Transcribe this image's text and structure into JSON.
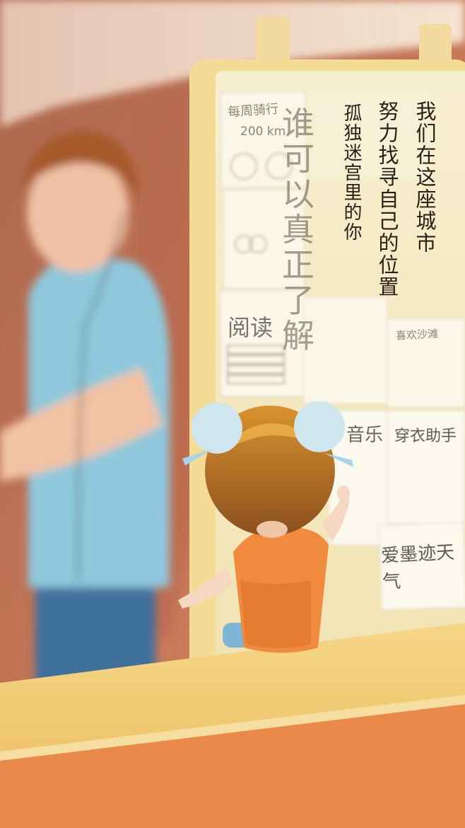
{
  "poem": {
    "line1": "我们在这座城市",
    "line2": "努力找寻自己的位置",
    "line3": "孤独迷宫里的你",
    "line4": "谁可以真正了解"
  },
  "notes": {
    "cycling": "每周骑行",
    "distance": "200 km",
    "reading": "阅读",
    "music": "音乐",
    "dress": "穿衣助手",
    "weather": "爱墨迹天气",
    "sea": "喜欢沙滩"
  },
  "colors": {
    "wall": "#c67657",
    "board": "#f4ebc3",
    "shirt_man": "#8fc8dc",
    "shirt_child": "#f08a3e",
    "hair_child": "#9a5a22",
    "desk": "#f2cf7a"
  }
}
